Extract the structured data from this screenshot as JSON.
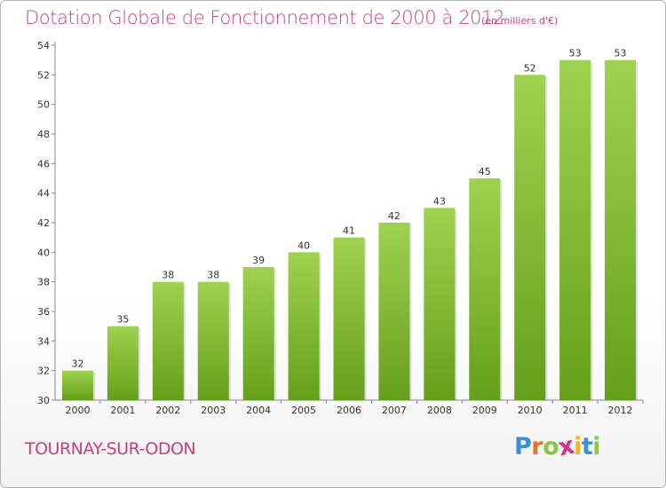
{
  "header": {
    "title": "Dotation Globale de Fonctionnement de 2000 à 2012",
    "unit": "(en milliers d'€)"
  },
  "footer": {
    "commune": "TOURNAY-SUR-ODON",
    "logo": {
      "letters": [
        "P",
        "r",
        "o",
        "x",
        "i",
        "t",
        "i"
      ],
      "colors": [
        "#3b8ed8",
        "#e8732a",
        "#8cc63f",
        "#d62f8b",
        "#f3b71d",
        "#3b8ed8",
        "#8cc63f"
      ]
    }
  },
  "colors": {
    "bar_light": "#9ed24f",
    "bar_dark": "#65a01a",
    "accent": "#c8417e",
    "axis": "#888888"
  },
  "chart_data": {
    "type": "bar",
    "categories": [
      "2000",
      "2001",
      "2002",
      "2003",
      "2004",
      "2005",
      "2006",
      "2007",
      "2008",
      "2009",
      "2010",
      "2011",
      "2012"
    ],
    "values": [
      32,
      35,
      38,
      38,
      39,
      40,
      41,
      42,
      43,
      45,
      52,
      53,
      53
    ],
    "title": "Dotation Globale de Fonctionnement de 2000 à 2012",
    "subtitle": "(en milliers d'€)",
    "xlabel": "",
    "ylabel": "",
    "ylim": [
      30,
      54
    ],
    "yticks": [
      30,
      32,
      34,
      36,
      38,
      40,
      42,
      44,
      46,
      48,
      50,
      52,
      54
    ],
    "grid": false,
    "data_labels": true
  }
}
